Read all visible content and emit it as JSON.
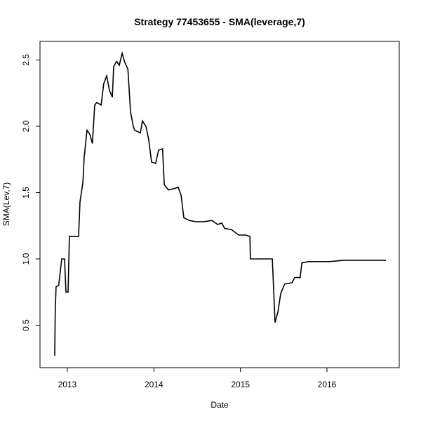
{
  "chart_data": {
    "type": "line",
    "title": "Strategy 77453655 - SMA(leverage,7)",
    "xlabel": "Date",
    "ylabel": "SMA(Lev,7)",
    "x": [
      2012.854,
      2012.86,
      2012.87,
      2012.9,
      2012.935,
      2012.968,
      2012.984,
      2013.008,
      2013.024,
      2013.06,
      2013.13,
      2013.146,
      2013.18,
      2013.195,
      2013.227,
      2013.26,
      2013.29,
      2013.316,
      2013.34,
      2013.39,
      2013.42,
      2013.454,
      2013.487,
      2013.52,
      2013.535,
      2013.57,
      2013.6,
      2013.633,
      2013.665,
      2013.7,
      2013.73,
      2013.762,
      2013.778,
      2013.843,
      2013.868,
      2013.908,
      2013.94,
      2013.973,
      2014.02,
      2014.054,
      2014.1,
      2014.12,
      2014.168,
      2014.233,
      2014.28,
      2014.314,
      2014.346,
      2014.41,
      2014.49,
      2014.573,
      2014.67,
      2014.736,
      2014.785,
      2014.817,
      2014.898,
      2014.98,
      2015.06,
      2015.11,
      2015.115,
      2015.368,
      2015.384,
      2015.4,
      2015.433,
      2015.466,
      2015.51,
      2015.595,
      2015.627,
      2015.69,
      2015.71,
      2015.79,
      2016.03,
      2016.195,
      2016.44,
      2016.68
    ],
    "values": [
      0.27,
      0.595,
      0.79,
      0.8,
      1.0,
      1.0,
      0.75,
      0.75,
      1.17,
      1.17,
      1.17,
      1.43,
      1.58,
      1.77,
      1.97,
      1.94,
      1.87,
      2.16,
      2.18,
      2.16,
      2.32,
      2.38,
      2.27,
      2.22,
      2.45,
      2.49,
      2.46,
      2.55,
      2.48,
      2.43,
      2.11,
      2.0,
      1.97,
      1.95,
      2.04,
      2.0,
      1.9,
      1.73,
      1.72,
      1.82,
      1.83,
      1.56,
      1.52,
      1.53,
      1.54,
      1.48,
      1.31,
      1.29,
      1.28,
      1.28,
      1.29,
      1.26,
      1.27,
      1.23,
      1.22,
      1.18,
      1.18,
      1.17,
      1.0,
      1.0,
      0.77,
      0.52,
      0.6,
      0.74,
      0.81,
      0.82,
      0.86,
      0.86,
      0.97,
      0.98,
      0.98,
      0.99,
      0.99,
      0.99
    ],
    "color": "#000000",
    "xlim": [
      2012.684,
      2016.835
    ],
    "xticks": [
      2013,
      2014,
      2015,
      2016
    ],
    "ylim": [
      0.18,
      2.64
    ],
    "yticks": [
      0.5,
      {
        "value": 1,
        "label": "1.0"
      },
      1.5,
      {
        "value": 2,
        "label": "2.0"
      },
      2.5
    ]
  }
}
